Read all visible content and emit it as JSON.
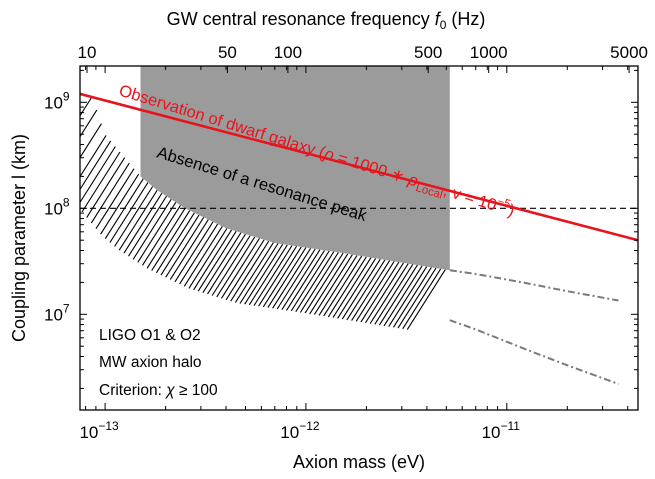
{
  "chart_data": {
    "type": "area",
    "title": "",
    "xlabel": "Axion mass (eV)",
    "ylabel": "Coupling  parameter l (km)",
    "top_xlabel_prefix": "GW central resonance frequency ",
    "top_xlabel_var": "f",
    "top_xlabel_sub": "0",
    "top_xlabel_suffix": " (Hz)",
    "x_scale": "log",
    "y_scale": "log",
    "xlim": [
      7.5e-14,
      4.5e-11
    ],
    "ylim": [
      1250000.0,
      2200000000.0
    ],
    "x_ticks": [
      {
        "value": 1e-13,
        "base": "10",
        "exp": "−13"
      },
      {
        "value": 1e-12,
        "base": "10",
        "exp": "−12"
      },
      {
        "value": 1e-11,
        "base": "10",
        "exp": "−11"
      }
    ],
    "y_ticks": [
      {
        "value": 10000000.0,
        "base": "10",
        "exp": "7"
      },
      {
        "value": 100000000.0,
        "base": "10",
        "exp": "8"
      },
      {
        "value": 1000000000.0,
        "base": "10",
        "exp": "9"
      }
    ],
    "top_ticks": [
      {
        "label": "10",
        "freq_hz": 10
      },
      {
        "label": "50",
        "freq_hz": 50
      },
      {
        "label": "100",
        "freq_hz": 100
      },
      {
        "label": "500",
        "freq_hz": 500
      },
      {
        "label": "1000",
        "freq_hz": 1000
      },
      {
        "label": "5000",
        "freq_hz": 5000
      }
    ],
    "grid": false,
    "series": [
      {
        "name": "Observation of dwarf galaxy",
        "label_prefix": "Observation of dwarf galaxy (",
        "label_rho": "ρ",
        "label_mid": " = 1000 ∗ ",
        "label_rho_sub": "Local",
        "label_v": ", v = 10",
        "label_v_exp": "−5",
        "label_suffix": ")",
        "color": "#e8141c",
        "style": "solid",
        "x": [
          7.5e-14,
          4.5e-11
        ],
        "y": [
          1200000000.0,
          50000000.0
        ]
      },
      {
        "name": "Absence of a resonance peak",
        "color": "#9b9b9b",
        "style": "filled-region",
        "x": [
          1.5e-13,
          1.8e-13,
          2.5e-13,
          4e-13,
          7e-13,
          1.5e-12,
          5.2e-12
        ],
        "y": [
          200000000.0,
          150000000.0,
          100000000.0,
          65000000.0,
          47000000.0,
          38000000.0,
          26000000.0
        ]
      },
      {
        "name": "LIGO O1 & O2 excluded (upper dash-dot)",
        "color": "#7a7a7a",
        "style": "dash-dot",
        "x": [
          5.2e-12,
          7e-12,
          1.2e-11,
          2e-11,
          3.6e-11
        ],
        "y": [
          26000000.0,
          24000000.0,
          20000000.0,
          16500000.0,
          13500000.0
        ]
      },
      {
        "name": "LIGO O1 & O2 excluded (lower dash-dot)",
        "color": "#7a7a7a",
        "style": "dash-dot",
        "x": [
          5.2e-12,
          7e-12,
          1.2e-11,
          2e-11,
          3.6e-11
        ],
        "y": [
          8800000.0,
          7200000.0,
          4800000.0,
          3300000.0,
          2200000.0
        ]
      }
    ],
    "hatched_boundary": {
      "x": [
        8.1e-14,
        1e-13,
        1.5e-13,
        1.8e-13,
        2.5e-13,
        4e-13,
        7e-13,
        1.5e-12,
        5.2e-12
      ],
      "y": [
        1600000000.0,
        500000000.0,
        200000000.0,
        150000000.0,
        100000000.0,
        65000000.0,
        47000000.0,
        38000000.0,
        26000000.0
      ]
    },
    "hline": {
      "y": 100000000.0,
      "style": "dashed",
      "color": "#000000"
    },
    "annotations": {
      "region_label": "Absence of a resonance peak",
      "notes": [
        "LIGO O1 & O2",
        "MW axion halo",
        "Criterion: "
      ],
      "criterion_var": "χ",
      "criterion_rel": " ≥ 100"
    }
  }
}
